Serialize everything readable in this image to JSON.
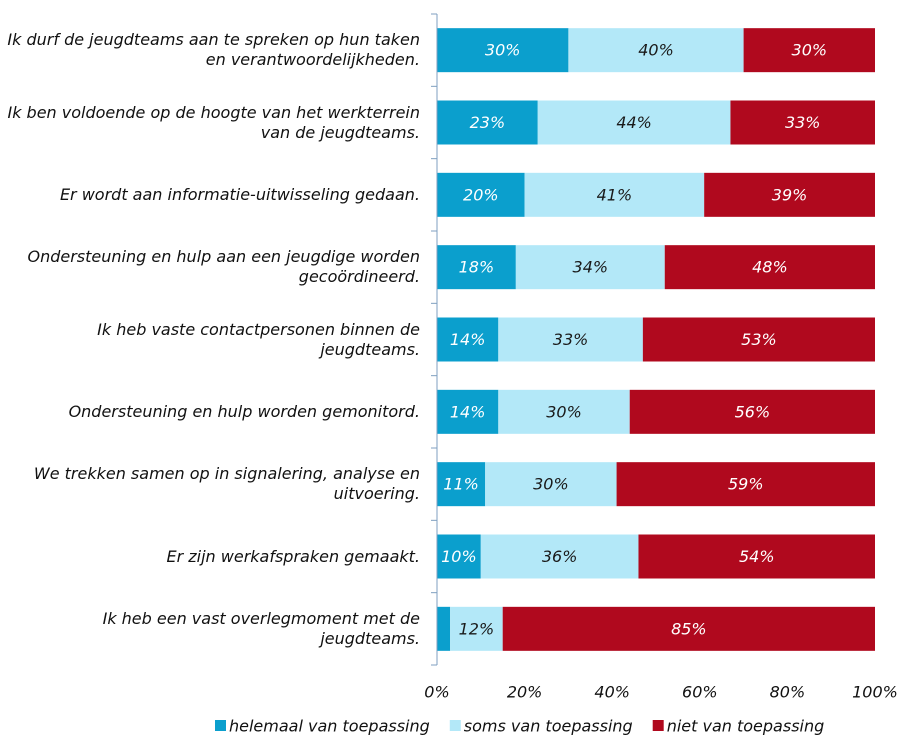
{
  "chart_data": {
    "type": "stacked-bar-horizontal",
    "categories": [
      "Ik durf de jeugdteams aan te spreken op hun taken en verantwoordelijkheden.",
      "Ik ben voldoende op de hoogte van het werkterrein van de jeugdteams.",
      "Er wordt aan informatie-uitwisseling gedaan.",
      "Ondersteuning en hulp aan een jeugdige worden gecoördineerd.",
      "Ik heb vaste contactpersonen binnen de jeugdteams.",
      "Ondersteuning en hulp worden gemonitord.",
      "We trekken samen op in signalering, analyse en uitvoering.",
      "Er zijn werkafspraken gemaakt.",
      "Ik heb een vast overlegmoment met de jeugdteams."
    ],
    "series": [
      {
        "name": "helemaal van toepassing",
        "color": "#0b9fcd",
        "label_color": "#ffffff",
        "values": [
          30,
          23,
          20,
          18,
          14,
          14,
          11,
          10,
          3
        ],
        "value_labels": [
          "30%",
          "23%",
          "20%",
          "18%",
          "14%",
          "14%",
          "11%",
          "10%",
          null
        ]
      },
      {
        "name": "soms van toepassing",
        "color": "#b3e8f8",
        "label_color": "#1a1a1a",
        "values": [
          40,
          44,
          41,
          34,
          33,
          30,
          30,
          36,
          12
        ],
        "value_labels": [
          "40%",
          "44%",
          "41%",
          "34%",
          "33%",
          "30%",
          "30%",
          "36%",
          "12%"
        ]
      },
      {
        "name": "niet van toepassing",
        "color": "#b0091e",
        "label_color": "#ffffff",
        "values": [
          30,
          33,
          39,
          48,
          53,
          56,
          59,
          54,
          85
        ],
        "value_labels": [
          "30%",
          "33%",
          "39%",
          "48%",
          "53%",
          "56%",
          "59%",
          "54%",
          "85%"
        ]
      }
    ],
    "xlim": [
      0,
      100
    ],
    "xticks": [
      {
        "value": 0,
        "label": "0%"
      },
      {
        "value": 20,
        "label": "20%"
      },
      {
        "value": 40,
        "label": "40%"
      },
      {
        "value": 60,
        "label": "60%"
      },
      {
        "value": 80,
        "label": "80%"
      },
      {
        "value": 100,
        "label": "100%"
      }
    ],
    "legend": "bottom"
  }
}
